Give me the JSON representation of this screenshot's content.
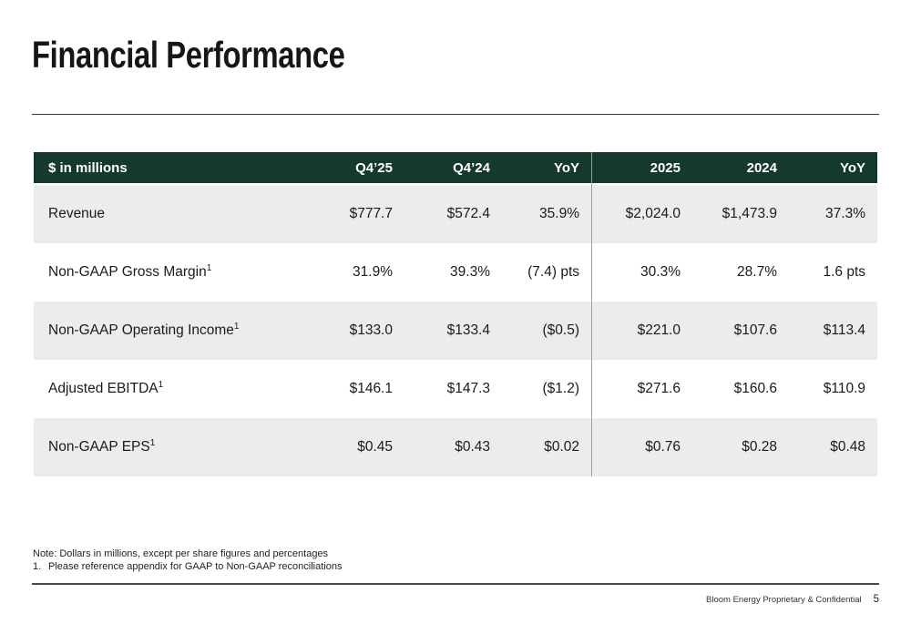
{
  "slide": {
    "title": "Financial Performance",
    "footer_text": "Bloom Energy Proprietary & Confidential",
    "page_number": "5",
    "note_1": "Note: Dollars in millions, except per share figures and percentages",
    "note_2_number": "1.",
    "note_2_text": "Please reference appendix for GAAP to Non-GAAP reconciliations"
  },
  "colors": {
    "header_green": "#15392a",
    "row_alt_gray": "#ececec",
    "divider_gray": "#9e9e9e",
    "text_dark": "#1a1a1a"
  },
  "table": {
    "header": {
      "col0": "$ in millions",
      "col1": "Q4’25",
      "col2": "Q4’24",
      "col3": "YoY",
      "col4": "2025",
      "col5": "2024",
      "col6": "YoY"
    },
    "rows": [
      {
        "label": "Revenue",
        "sup": "",
        "values": [
          "$777.7",
          "$572.4",
          "35.9%",
          "$2,024.0",
          "$1,473.9",
          "37.3%"
        ]
      },
      {
        "label": "Non-GAAP Gross Margin",
        "sup": "1",
        "values": [
          "31.9%",
          "39.3%",
          "(7.4) pts",
          "30.3%",
          "28.7%",
          "1.6 pts"
        ]
      },
      {
        "label": "Non-GAAP Operating Income",
        "sup": "1",
        "values": [
          "$133.0",
          "$133.4",
          "($0.5)",
          "$221.0",
          "$107.6",
          "$113.4"
        ]
      },
      {
        "label": "Adjusted EBITDA",
        "sup": "1",
        "values": [
          "$146.1",
          "$147.3",
          "($1.2)",
          "$271.6",
          "$160.6",
          "$110.9"
        ]
      },
      {
        "label": "Non-GAAP EPS",
        "sup": "1",
        "values": [
          "$0.45",
          "$0.43",
          "$0.02",
          "$0.76",
          "$0.28",
          "$0.48"
        ]
      }
    ]
  }
}
